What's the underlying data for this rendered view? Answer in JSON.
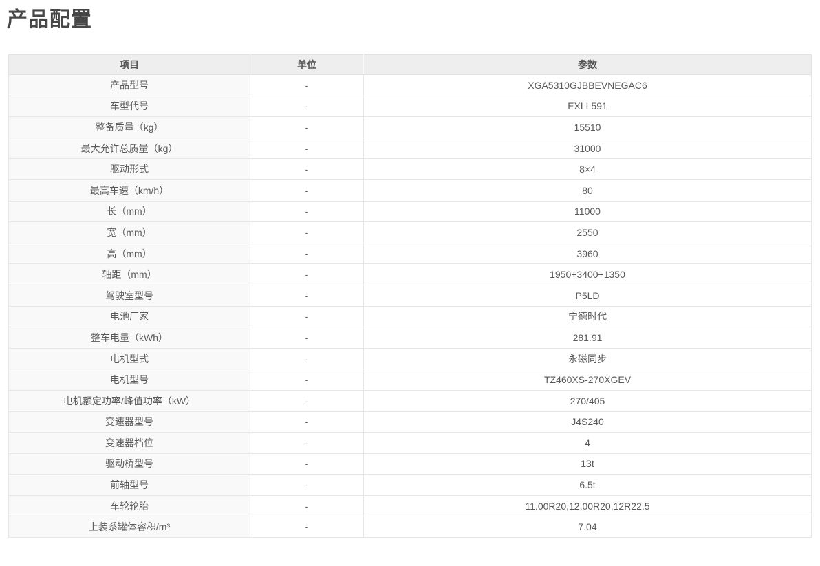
{
  "page": {
    "title": "产品配置"
  },
  "colors": {
    "title_text": "#474747",
    "header_background": "#eeeeee",
    "item_column_background": "#f9f9f9",
    "table_border": "#e2e2e2",
    "body_text": "#595959"
  },
  "table": {
    "headers": [
      "项目",
      "单位",
      "参数"
    ],
    "rows": [
      {
        "item": "产品型号",
        "unit": "-",
        "value": "XGA5310GJBBEVNEGAC6"
      },
      {
        "item": "车型代号",
        "unit": "-",
        "value": "EXLL591"
      },
      {
        "item": "整备质量（kg）",
        "unit": "-",
        "value": "15510"
      },
      {
        "item": "最大允许总质量（kg）",
        "unit": "-",
        "value": "31000"
      },
      {
        "item": "驱动形式",
        "unit": "-",
        "value": "8×4"
      },
      {
        "item": "最高车速（km/h）",
        "unit": "-",
        "value": "80"
      },
      {
        "item": "长（mm）",
        "unit": "-",
        "value": "11000"
      },
      {
        "item": "宽（mm）",
        "unit": "-",
        "value": "2550"
      },
      {
        "item": "高（mm）",
        "unit": "-",
        "value": "3960"
      },
      {
        "item": "轴距（mm）",
        "unit": "-",
        "value": "1950+3400+1350"
      },
      {
        "item": "驾驶室型号",
        "unit": "-",
        "value": "P5LD"
      },
      {
        "item": "电池厂家",
        "unit": "-",
        "value": "宁德时代"
      },
      {
        "item": "整车电量（kWh）",
        "unit": "-",
        "value": "281.91"
      },
      {
        "item": "电机型式",
        "unit": "-",
        "value": "永磁同步"
      },
      {
        "item": "电机型号",
        "unit": "-",
        "value": "TZ460XS-270XGEV"
      },
      {
        "item": "电机额定功率/峰值功率（kW）",
        "unit": "-",
        "value": "270/405"
      },
      {
        "item": "变速器型号",
        "unit": "-",
        "value": "J4S240"
      },
      {
        "item": "变速器档位",
        "unit": "-",
        "value": "4"
      },
      {
        "item": "驱动桥型号",
        "unit": "-",
        "value": "13t"
      },
      {
        "item": "前轴型号",
        "unit": "-",
        "value": "6.5t"
      },
      {
        "item": "车轮轮胎",
        "unit": "-",
        "value": "11.00R20,12.00R20,12R22.5"
      },
      {
        "item": "上装系罐体容积/m³",
        "unit": "-",
        "value": "7.04"
      }
    ]
  }
}
